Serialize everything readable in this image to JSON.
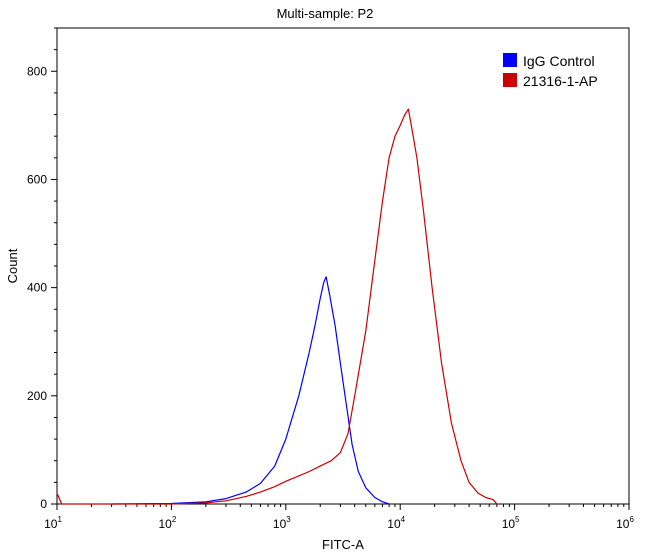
{
  "chart_data": {
    "type": "line",
    "title": "Multi-sample: P2",
    "xlabel": "FITC-A",
    "ylabel": "Count",
    "x_scale": "log",
    "xlim": [
      10,
      1000000
    ],
    "ylim": [
      0,
      880
    ],
    "x_ticks": [
      {
        "base": "10",
        "exp": "1",
        "value": 10
      },
      {
        "base": "10",
        "exp": "2",
        "value": 100
      },
      {
        "base": "10",
        "exp": "3",
        "value": 1000
      },
      {
        "base": "10",
        "exp": "4",
        "value": 10000
      },
      {
        "base": "10",
        "exp": "5",
        "value": 100000
      },
      {
        "base": "10",
        "exp": "6",
        "value": 1000000
      }
    ],
    "y_ticks": [
      0,
      200,
      400,
      600,
      800
    ],
    "grid": false,
    "legend_position": "top-right",
    "series": [
      {
        "name": "IgG Control",
        "color": "#0000ff",
        "points": [
          [
            30,
            0
          ],
          [
            100,
            1
          ],
          [
            200,
            4
          ],
          [
            300,
            10
          ],
          [
            450,
            22
          ],
          [
            600,
            38
          ],
          [
            800,
            70
          ],
          [
            1000,
            120
          ],
          [
            1300,
            200
          ],
          [
            1600,
            280
          ],
          [
            1800,
            330
          ],
          [
            2000,
            380
          ],
          [
            2150,
            410
          ],
          [
            2250,
            420
          ],
          [
            2400,
            390
          ],
          [
            2700,
            330
          ],
          [
            3000,
            260
          ],
          [
            3400,
            180
          ],
          [
            3800,
            110
          ],
          [
            4300,
            60
          ],
          [
            5000,
            30
          ],
          [
            6000,
            12
          ],
          [
            7000,
            4
          ],
          [
            8000,
            0
          ]
        ]
      },
      {
        "name": "21316-1-AP",
        "color": "#cc0000",
        "points": [
          [
            10,
            20
          ],
          [
            11,
            0
          ],
          [
            100,
            0
          ],
          [
            200,
            2
          ],
          [
            300,
            6
          ],
          [
            450,
            14
          ],
          [
            600,
            22
          ],
          [
            800,
            32
          ],
          [
            1000,
            42
          ],
          [
            1300,
            52
          ],
          [
            1600,
            60
          ],
          [
            2000,
            70
          ],
          [
            2500,
            80
          ],
          [
            3000,
            95
          ],
          [
            3500,
            130
          ],
          [
            4000,
            200
          ],
          [
            5000,
            320
          ],
          [
            6000,
            450
          ],
          [
            7000,
            560
          ],
          [
            8000,
            640
          ],
          [
            9000,
            680
          ],
          [
            10000,
            700
          ],
          [
            11000,
            720
          ],
          [
            11800,
            730
          ],
          [
            12500,
            700
          ],
          [
            14000,
            640
          ],
          [
            16000,
            540
          ],
          [
            19000,
            400
          ],
          [
            23000,
            260
          ],
          [
            28000,
            150
          ],
          [
            34000,
            80
          ],
          [
            40000,
            40
          ],
          [
            48000,
            20
          ],
          [
            56000,
            12
          ],
          [
            65000,
            8
          ],
          [
            70000,
            0
          ]
        ]
      }
    ]
  }
}
